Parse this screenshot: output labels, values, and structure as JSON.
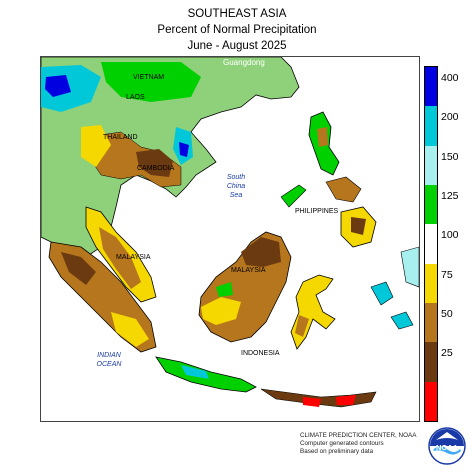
{
  "title": {
    "line1": "SOUTHEAST ASIA",
    "line2": "Percent of Normal Precipitation",
    "line3": "June - August 2025"
  },
  "map_labels": {
    "guangdong": "Guangdong",
    "vietnam": "VIETNAM",
    "laos": "LAOS",
    "thailand": "THAILAND",
    "cambodia": "CAMBODIA",
    "south_china_sea": [
      "South",
      "China",
      "Sea"
    ],
    "philippines": "PHILIPPINES",
    "malaysia": "MALAYSIA",
    "indonesia": "INDONESIA",
    "indian_ocean": [
      "INDIAN",
      "OCEAN"
    ]
  },
  "legend": {
    "scale_type": "percent of normal precipitation",
    "bins": [
      {
        "color": "#ff0000",
        "label": ""
      },
      {
        "color": "#6b3a10",
        "label": "25"
      },
      {
        "color": "#b5761e",
        "label": "50"
      },
      {
        "color": "#f5d800",
        "label": "75"
      },
      {
        "color": "#ffffff",
        "label": "100"
      },
      {
        "color": "#00d000",
        "label": "125"
      },
      {
        "color": "#a8f0f0",
        "label": "150"
      },
      {
        "color": "#00c8d8",
        "label": "200"
      },
      {
        "color": "#0000e0",
        "label": "400"
      }
    ]
  },
  "credit": {
    "line1": "CLIMATE PREDICTION CENTER, NOAA",
    "line2": "Computer generated contours",
    "line3": "Based on preliminary data"
  },
  "logo": {
    "text": "NOAA",
    "icon": "noaa-logo"
  }
}
